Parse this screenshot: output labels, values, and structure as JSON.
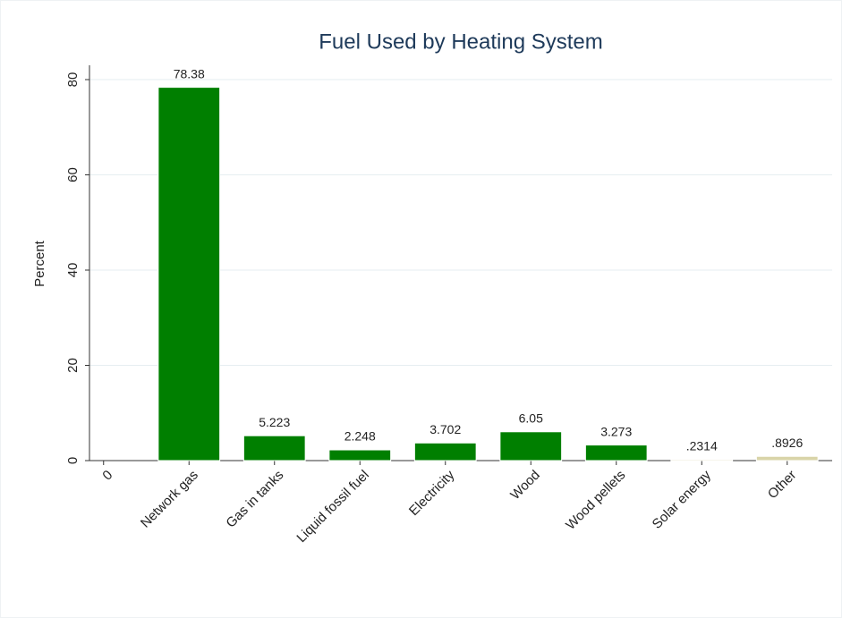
{
  "chart_data": {
    "type": "bar",
    "title": "Fuel Used by Heating System",
    "y_label": "Percent",
    "categories": [
      "0",
      "Network gas",
      "Gas in tanks",
      "Liquid fossil fuel",
      "Electricity",
      "Wood",
      "Wood pellets",
      "Solar energy",
      "Other"
    ],
    "values": [
      null,
      78.38,
      5.223,
      2.248,
      3.702,
      6.05,
      3.273,
      0.2314,
      0.8926
    ],
    "value_labels": [
      null,
      "78.38",
      "5.223",
      "2.248",
      "3.702",
      "6.05",
      "3.273",
      ".2314",
      ".8926"
    ],
    "colors": [
      "#007f00",
      "#007f00",
      "#007f00",
      "#007f00",
      "#007f00",
      "#007f00",
      "#007f00",
      "#d9d4a8",
      "#d9d4a8"
    ],
    "ylim": [
      0,
      80
    ],
    "yticks": [
      0,
      20,
      40,
      60,
      80
    ],
    "grid": true
  }
}
